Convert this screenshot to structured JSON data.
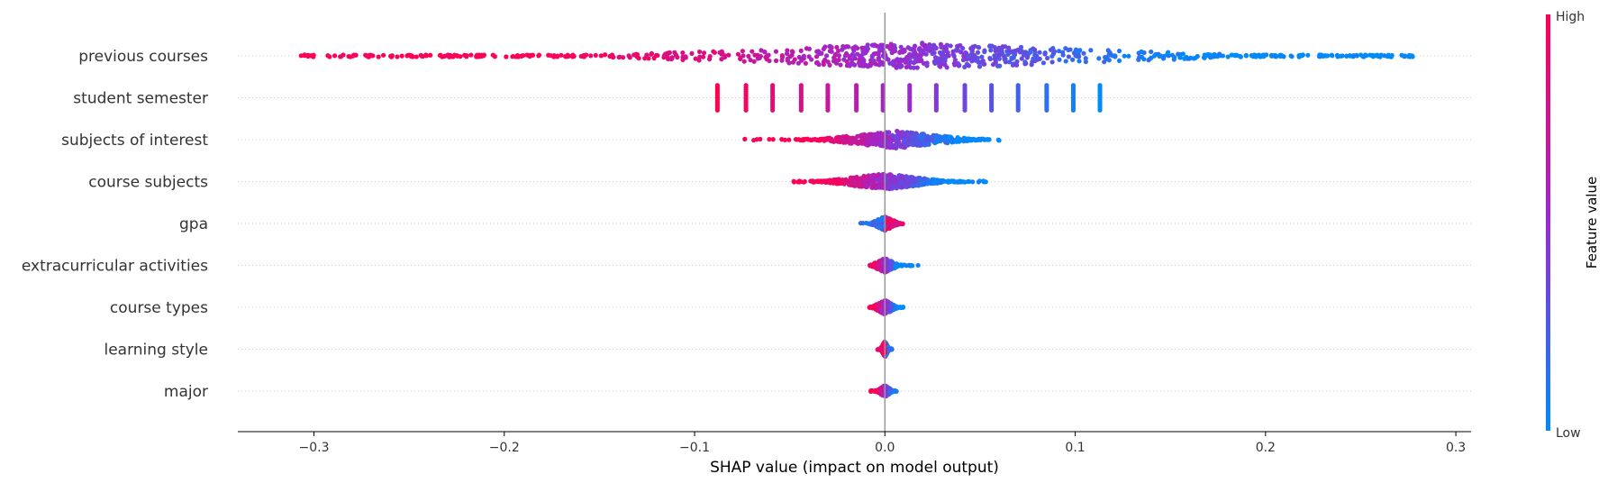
{
  "chart_data": {
    "type": "scatter",
    "subtype": "shap-beeswarm",
    "xlabel": "SHAP value (impact on model output)",
    "xlim": [
      -0.34,
      0.308
    ],
    "x_ticks": [
      -0.3,
      -0.2,
      -0.1,
      0.0,
      0.1,
      0.2,
      0.3
    ],
    "x_tick_labels": [
      "−0.3",
      "−0.2",
      "−0.1",
      "0.0",
      "0.1",
      "0.2",
      "0.3"
    ],
    "zero_line": 0.0,
    "colorbar": {
      "title": "Feature value",
      "high_label": "High",
      "low_label": "Low",
      "low_color": "#008bfb",
      "high_color": "#ff0052"
    },
    "features": [
      {
        "name": "previous courses",
        "min": -0.307,
        "max": 0.278,
        "spread": "wide",
        "density_peak": 0.02,
        "vertical_spread": 0.9
      },
      {
        "name": "student semester",
        "discrete_values": [
          -0.088,
          -0.073,
          -0.059,
          -0.044,
          -0.03,
          -0.015,
          -0.001,
          0.013,
          0.027,
          0.042,
          0.056,
          0.07,
          0.085,
          0.099,
          0.113
        ],
        "spread": "discrete"
      },
      {
        "name": "subjects of interest",
        "min": -0.076,
        "max": 0.063,
        "spread": "medium",
        "density_peak": 0.006,
        "vertical_spread": 0.6
      },
      {
        "name": "course subjects",
        "min": -0.05,
        "max": 0.064,
        "spread": "medium",
        "density_peak": 0.0,
        "vertical_spread": 0.55
      },
      {
        "name": "gpa",
        "min": -0.013,
        "max": 0.013,
        "spread": "narrow",
        "density_peak": 0.0,
        "vertical_spread": 0.5
      },
      {
        "name": "extracurricular activities",
        "min": -0.008,
        "max": 0.018,
        "spread": "narrow",
        "density_peak": 0.0,
        "vertical_spread": 0.5
      },
      {
        "name": "course types",
        "min": -0.012,
        "max": 0.011,
        "spread": "narrow",
        "density_peak": 0.0,
        "vertical_spread": 0.5
      },
      {
        "name": "learning style",
        "min": -0.004,
        "max": 0.004,
        "spread": "narrow",
        "density_peak": 0.0,
        "vertical_spread": 0.55
      },
      {
        "name": "major",
        "min": -0.008,
        "max": 0.007,
        "spread": "narrow",
        "density_peak": 0.0,
        "vertical_spread": 0.4
      }
    ]
  }
}
